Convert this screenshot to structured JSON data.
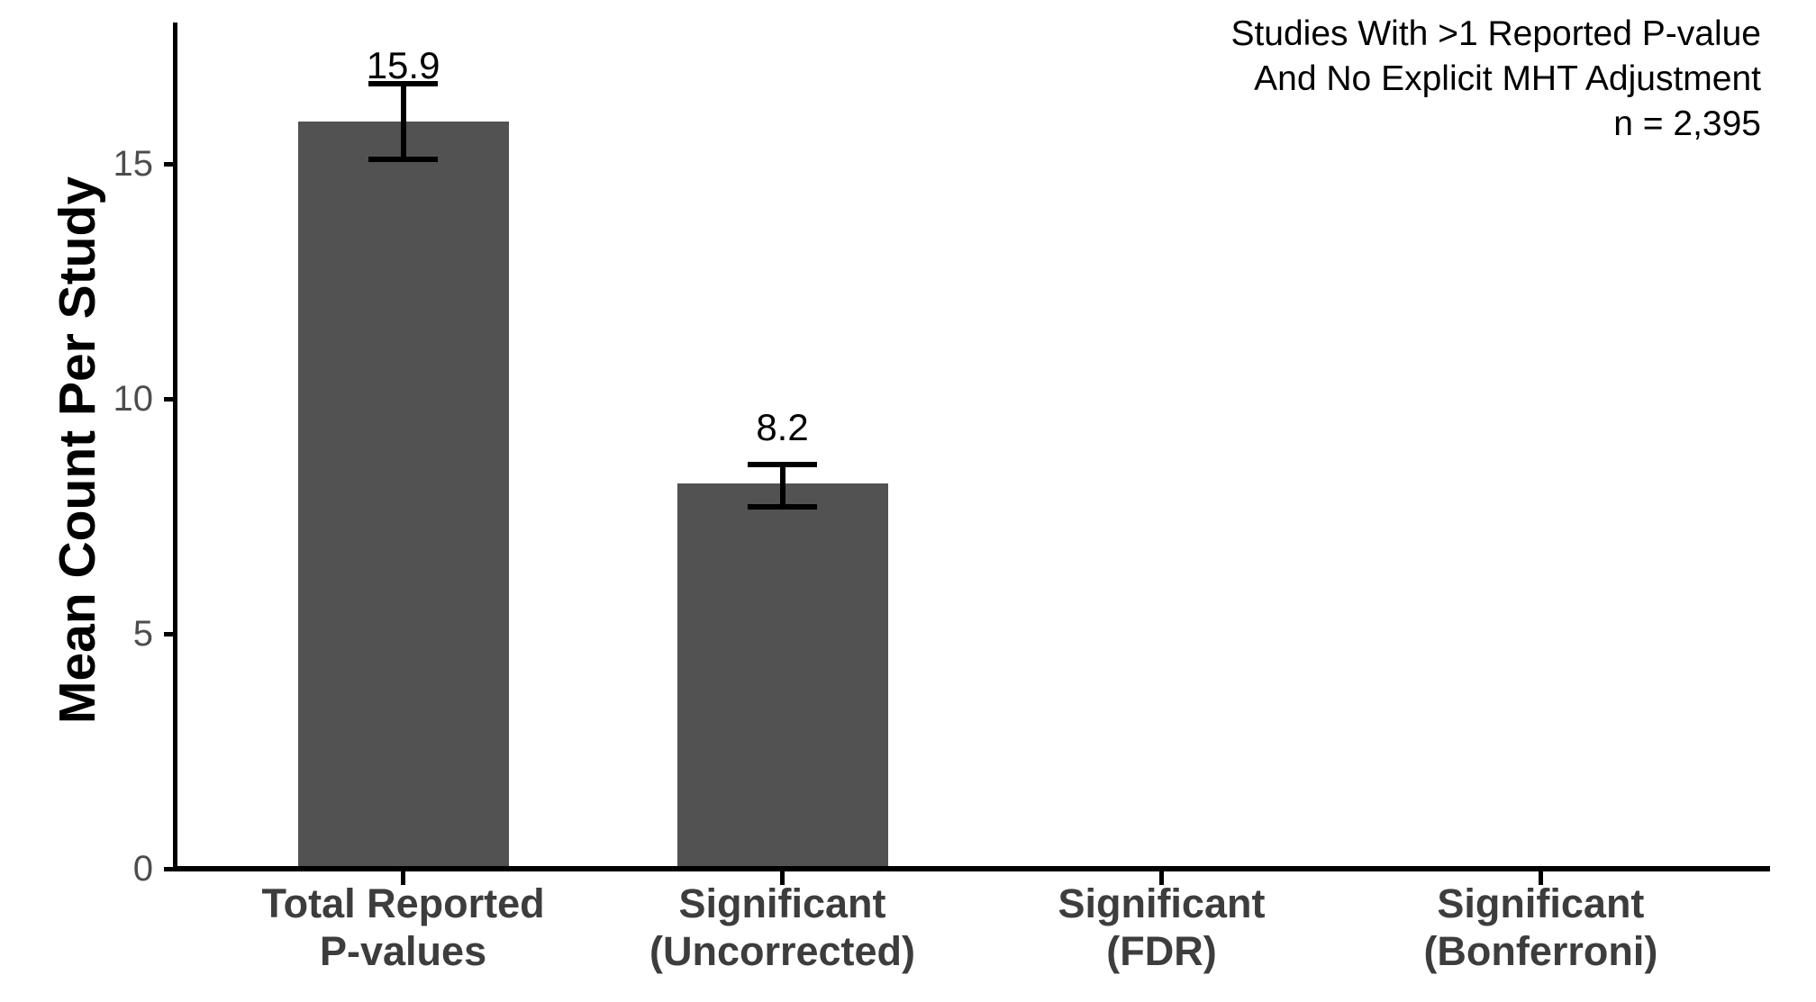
{
  "chart_data": {
    "type": "bar",
    "title": "",
    "xlabel": "",
    "ylabel": "Mean Count Per Study",
    "categories": [
      "Total Reported\nP-values",
      "Significant\n(Uncorrected)",
      "Significant\n(FDR)",
      "Significant\n(Bonferroni)"
    ],
    "values": [
      15.9,
      8.2,
      0,
      0
    ],
    "value_labels": [
      "15.9",
      "8.2",
      "",
      ""
    ],
    "error_bars": [
      {
        "lower": 15.1,
        "upper": 16.7
      },
      {
        "lower": 7.7,
        "upper": 8.6
      },
      null,
      null
    ],
    "y_tick_values": [
      0,
      5,
      10,
      15
    ],
    "y_tick_labels": [
      "0",
      "5",
      "10",
      "15"
    ],
    "ylim": [
      0,
      18
    ],
    "grid": false,
    "legend": "none",
    "annotation_lines": [
      "Studies With >1 Reported P-value",
      "And No Explicit MHT Adjustment",
      "n = 2,395"
    ],
    "colors": {
      "bar": "#525252",
      "axis": "#000000",
      "x_tick_label": "#3d3d3d",
      "y_tick_label": "#4d4d4d",
      "value_label": "#000000",
      "annotation": "#000000",
      "y_title": "#000000",
      "background": "#ffffff"
    }
  }
}
